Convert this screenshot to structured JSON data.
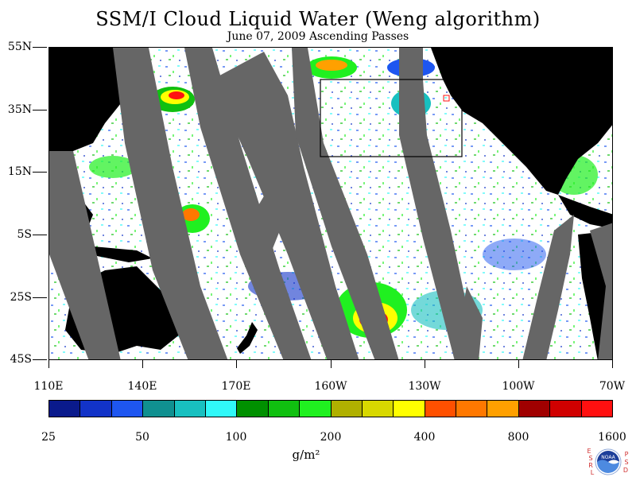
{
  "header": {
    "title": "SSM/I Cloud Liquid Water (Weng algorithm)",
    "subtitle": "June 07, 2009  Ascending Passes"
  },
  "map": {
    "latitude_labels": [
      "55N",
      "35N",
      "15N",
      "5S",
      "25S",
      "45S"
    ],
    "longitude_labels": [
      "110E",
      "140E",
      "170E",
      "160W",
      "130W",
      "100W",
      "70W"
    ],
    "colors": {
      "land": "#000000",
      "no_data": "#666666",
      "ocean_clear": "#ffffff"
    }
  },
  "colorbar": {
    "colors": [
      "#0a1a8c",
      "#1233c8",
      "#1e56f0",
      "#109090",
      "#18c0c0",
      "#30f8f8",
      "#009000",
      "#10c010",
      "#20f020",
      "#b0b000",
      "#d8d800",
      "#ffff00",
      "#ff5000",
      "#ff7800",
      "#ffa000",
      "#a00000",
      "#d00000",
      "#ff1010"
    ],
    "tick_labels": [
      "25",
      "50",
      "100",
      "200",
      "400",
      "800",
      "1600"
    ],
    "unit": "g/m²"
  },
  "logo": {
    "left_letters": [
      "E",
      "S",
      "R",
      "L"
    ],
    "right_letters": [
      "P",
      "S",
      "D"
    ],
    "text": "NOAA"
  }
}
